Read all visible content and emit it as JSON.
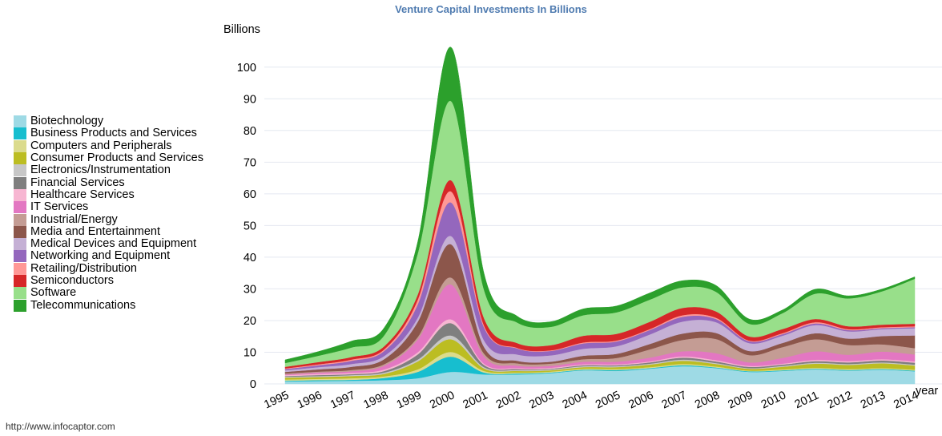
{
  "chart_data": {
    "type": "area",
    "stacked": true,
    "style": "streamgraph-smoothed",
    "title": "Venture Capital Investments In Billions",
    "ylabel": "Billions",
    "xlabel": "year",
    "ylim": [
      0,
      105
    ],
    "yticks": [
      0,
      10,
      20,
      30,
      40,
      50,
      60,
      70,
      80,
      90,
      100
    ],
    "grid": "horizontal",
    "legend_position": "left",
    "x": [
      "1995",
      "1996",
      "1997",
      "1998",
      "1999",
      "2000",
      "2001",
      "2002",
      "2003",
      "2004",
      "2005",
      "2006",
      "2007",
      "2008",
      "2009",
      "2010",
      "2011",
      "2012",
      "2013",
      "2014"
    ],
    "series": [
      {
        "name": "Biotechnology",
        "color": "#9edae5",
        "values": [
          0.8,
          0.9,
          1.0,
          1.2,
          1.8,
          3.8,
          3.0,
          3.0,
          3.4,
          4.3,
          4.1,
          4.8,
          5.6,
          5.0,
          3.8,
          4.1,
          4.6,
          4.2,
          4.5,
          4.0
        ]
      },
      {
        "name": "Business Products and Services",
        "color": "#17becf",
        "values": [
          0.2,
          0.3,
          0.3,
          0.7,
          2.0,
          4.8,
          0.6,
          0.3,
          0.2,
          0.2,
          0.3,
          0.2,
          0.3,
          0.2,
          0.2,
          0.2,
          0.2,
          0.2,
          0.2,
          0.2
        ]
      },
      {
        "name": "Computers and Peripherals",
        "color": "#dbdb8d",
        "values": [
          0.4,
          0.4,
          0.5,
          0.5,
          0.8,
          1.5,
          0.5,
          0.3,
          0.3,
          0.3,
          0.3,
          0.3,
          0.4,
          0.3,
          0.2,
          0.3,
          0.3,
          0.3,
          0.3,
          0.3
        ]
      },
      {
        "name": "Consumer Products and Services",
        "color": "#bcbd22",
        "values": [
          0.6,
          0.6,
          0.7,
          0.8,
          2.5,
          4.0,
          0.8,
          0.5,
          0.4,
          0.5,
          0.6,
          0.8,
          1.0,
          0.8,
          0.6,
          0.8,
          1.3,
          1.3,
          1.5,
          1.3
        ]
      },
      {
        "name": "Electronics/Instrumentation",
        "color": "#c7c7c7",
        "values": [
          0.3,
          0.3,
          0.3,
          0.4,
          0.6,
          1.2,
          0.4,
          0.3,
          0.3,
          0.3,
          0.3,
          0.3,
          0.4,
          0.3,
          0.2,
          0.3,
          0.3,
          0.3,
          0.3,
          0.3
        ]
      },
      {
        "name": "Financial Services",
        "color": "#7f7f7f",
        "values": [
          0.2,
          0.3,
          0.3,
          0.5,
          1.6,
          3.9,
          0.7,
          0.3,
          0.2,
          0.3,
          0.3,
          0.4,
          0.6,
          0.5,
          0.4,
          0.4,
          0.5,
          0.5,
          0.6,
          0.6
        ]
      },
      {
        "name": "Healthcare Services",
        "color": "#f7b6d2",
        "values": [
          0.3,
          0.4,
          0.4,
          0.5,
          0.7,
          1.2,
          0.4,
          0.3,
          0.3,
          0.3,
          0.3,
          0.3,
          0.4,
          0.4,
          0.3,
          0.3,
          0.4,
          0.4,
          0.4,
          0.4
        ]
      },
      {
        "name": "IT Services",
        "color": "#e377c2",
        "values": [
          0.2,
          0.4,
          0.5,
          1.2,
          4.0,
          11.0,
          2.3,
          0.8,
          0.6,
          0.8,
          0.8,
          1.2,
          1.6,
          2.2,
          1.1,
          1.8,
          2.7,
          2.0,
          2.4,
          2.2
        ]
      },
      {
        "name": "Industrial/Energy",
        "color": "#c49c94",
        "values": [
          0.3,
          0.3,
          0.4,
          0.5,
          0.8,
          2.2,
          0.9,
          0.7,
          0.7,
          0.8,
          1.2,
          2.6,
          3.6,
          4.5,
          2.3,
          3.4,
          3.8,
          3.1,
          2.3,
          2.0
        ]
      },
      {
        "name": "Media and Entertainment",
        "color": "#8c564b",
        "values": [
          0.5,
          0.7,
          1.0,
          1.6,
          4.8,
          10.5,
          2.1,
          0.8,
          0.6,
          1.1,
          1.3,
          1.7,
          2.0,
          1.9,
          1.3,
          1.3,
          1.9,
          2.0,
          2.6,
          4.0
        ]
      },
      {
        "name": "Medical Devices and Equipment",
        "color": "#c5b0d5",
        "values": [
          0.5,
          0.7,
          0.9,
          1.0,
          1.3,
          2.6,
          2.1,
          2.0,
          2.0,
          2.2,
          2.4,
          3.0,
          3.8,
          3.4,
          2.5,
          2.3,
          2.6,
          2.3,
          2.2,
          2.3
        ]
      },
      {
        "name": "Networking and Equipment",
        "color": "#9467bd",
        "values": [
          0.4,
          0.6,
          1.0,
          1.6,
          4.2,
          10.6,
          4.1,
          1.9,
          1.4,
          1.7,
          1.5,
          1.4,
          1.5,
          1.0,
          0.6,
          0.5,
          0.5,
          0.4,
          0.3,
          0.3
        ]
      },
      {
        "name": "Retailing/Distribution",
        "color": "#ff9896",
        "values": [
          0.2,
          0.3,
          0.4,
          0.5,
          1.5,
          3.5,
          0.6,
          0.2,
          0.2,
          0.3,
          0.3,
          0.3,
          0.5,
          0.4,
          0.2,
          0.3,
          0.4,
          0.3,
          0.3,
          0.3
        ]
      },
      {
        "name": "Semiconductors",
        "color": "#d62728",
        "values": [
          0.5,
          0.7,
          0.8,
          1.0,
          1.6,
          3.5,
          2.3,
          1.5,
          1.6,
          2.1,
          2.1,
          2.3,
          2.3,
          2.0,
          1.3,
          1.3,
          1.0,
          0.9,
          0.8,
          0.8
        ]
      },
      {
        "name": "Software",
        "color": "#98df8a",
        "values": [
          1.2,
          2.0,
          3.0,
          3.5,
          13.0,
          25.0,
          9.0,
          6.5,
          5.8,
          6.5,
          6.8,
          7.0,
          6.5,
          6.2,
          4.0,
          5.0,
          8.0,
          8.8,
          10.5,
          14.2
        ]
      },
      {
        "name": "Telecommunications",
        "color": "#2ca02c",
        "values": [
          1.0,
          1.3,
          2.0,
          2.4,
          3.6,
          17.0,
          5.1,
          2.0,
          1.6,
          2.0,
          2.0,
          2.1,
          2.1,
          2.0,
          1.5,
          1.0,
          1.4,
          0.8,
          0.7,
          0.6
        ]
      }
    ]
  },
  "footer": {
    "source_url": "http://www.infocaptor.com"
  }
}
